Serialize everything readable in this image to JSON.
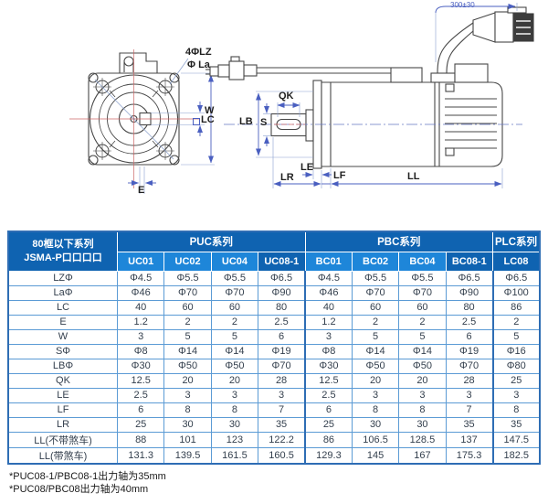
{
  "diagram": {
    "front": {
      "holes": "4ΦLZ",
      "la": "Φ La",
      "w": "W",
      "lc": "LC",
      "e": "E"
    },
    "side": {
      "qk": "QK",
      "s": "S",
      "lb": "LB",
      "le": "LE",
      "lr": "LR",
      "lf": "LF",
      "ll": "LL",
      "cable_length": "300±30"
    }
  },
  "table": {
    "corner_header": [
      "80框以下系列",
      "JSMA-P口口口口"
    ],
    "groups": [
      {
        "label": "PUC系列",
        "columns": [
          "UC01",
          "UC02",
          "UC04",
          "UC08-1"
        ],
        "highlight": [
          false,
          false,
          false,
          true
        ]
      },
      {
        "label": "PBC系列",
        "columns": [
          "BC01",
          "BC02",
          "BC04",
          "BC08-1"
        ],
        "highlight": [
          false,
          false,
          false,
          true
        ]
      },
      {
        "label": "PLC系列",
        "columns": [
          "LC08"
        ],
        "highlight": [
          true
        ]
      }
    ],
    "rows": [
      {
        "label": "LZΦ",
        "values": [
          "Φ4.5",
          "Φ5.5",
          "Φ5.5",
          "Φ6.5",
          "Φ4.5",
          "Φ5.5",
          "Φ5.5",
          "Φ6.5",
          "Φ6.5"
        ]
      },
      {
        "label": "LaΦ",
        "values": [
          "Φ46",
          "Φ70",
          "Φ70",
          "Φ90",
          "Φ46",
          "Φ70",
          "Φ70",
          "Φ90",
          "Φ100"
        ]
      },
      {
        "label": "LC",
        "values": [
          "40",
          "60",
          "60",
          "80",
          "40",
          "60",
          "60",
          "80",
          "86"
        ]
      },
      {
        "label": "E",
        "values": [
          "1.2",
          "2",
          "2",
          "2.5",
          "1.2",
          "2",
          "2",
          "2.5",
          "2"
        ]
      },
      {
        "label": "W",
        "values": [
          "3",
          "5",
          "5",
          "6",
          "3",
          "5",
          "5",
          "6",
          "5"
        ]
      },
      {
        "label": "SΦ",
        "values": [
          "Φ8",
          "Φ14",
          "Φ14",
          "Φ19",
          "Φ8",
          "Φ14",
          "Φ14",
          "Φ19",
          "Φ16"
        ]
      },
      {
        "label": "LBΦ",
        "values": [
          "Φ30",
          "Φ50",
          "Φ50",
          "Φ70",
          "Φ30",
          "Φ50",
          "Φ50",
          "Φ70",
          "Φ80"
        ]
      },
      {
        "label": "QK",
        "values": [
          "12.5",
          "20",
          "20",
          "28",
          "12.5",
          "20",
          "20",
          "28",
          "25"
        ]
      },
      {
        "label": "LE",
        "values": [
          "2.5",
          "3",
          "3",
          "3",
          "2.5",
          "3",
          "3",
          "3",
          "3"
        ]
      },
      {
        "label": "LF",
        "values": [
          "6",
          "8",
          "8",
          "7",
          "6",
          "8",
          "8",
          "7",
          "8"
        ]
      },
      {
        "label": "LR",
        "values": [
          "25",
          "30",
          "30",
          "35",
          "25",
          "30",
          "30",
          "35",
          "35"
        ]
      },
      {
        "label": "LL(不带煞车)",
        "values": [
          "88",
          "101",
          "123",
          "122.2",
          "86",
          "106.5",
          "128.5",
          "137",
          "147.5"
        ]
      },
      {
        "label": "LL(带煞车)",
        "values": [
          "131.3",
          "139.5",
          "161.5",
          "160.5",
          "129.3",
          "145",
          "167",
          "175.3",
          "182.5"
        ]
      }
    ]
  },
  "footnotes": [
    "*PUC08-1/PBC08-1出力轴为35mm",
    "*PUC08/PBC08出力轴为40mm"
  ],
  "colors": {
    "header_dark": "#0f63b1",
    "header_light": "#1e86d9",
    "cell_border": "#5b9bd5",
    "group_border": "#2e6db4",
    "dimension_blue": "#4a5fc0",
    "centerline_red": "#cc6666",
    "outline": "#474747"
  }
}
